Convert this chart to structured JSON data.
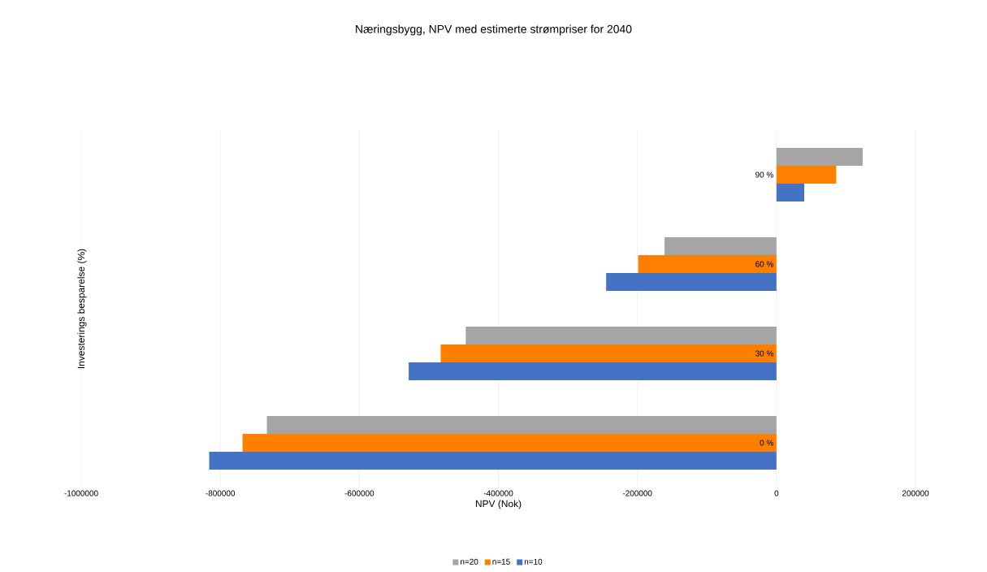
{
  "chart_data": {
    "type": "bar",
    "orientation": "horizontal",
    "title": "Næringsbygg, NPV med estimerte strømpriser for 2040",
    "xlabel": "NPV (Nok)",
    "ylabel": "Investerings besparelse (%)",
    "categories": [
      "90 %",
      "60 %",
      "30 %",
      "0 %"
    ],
    "series": [
      {
        "name": "n=20",
        "color": "#a5a5a5",
        "values": [
          124000,
          -161000,
          -447000,
          -733000
        ]
      },
      {
        "name": "n=15",
        "color": "#ff7f00",
        "values": [
          86000,
          -199000,
          -483000,
          -768000
        ]
      },
      {
        "name": "n=10",
        "color": "#4472c4",
        "values": [
          40000,
          -245000,
          -529000,
          -816000
        ]
      }
    ],
    "xlim": [
      -1000000,
      200000
    ],
    "xticks": [
      -1000000,
      -800000,
      -600000,
      -400000,
      -200000,
      0,
      200000
    ],
    "grid": "x",
    "legend": "bottom"
  }
}
